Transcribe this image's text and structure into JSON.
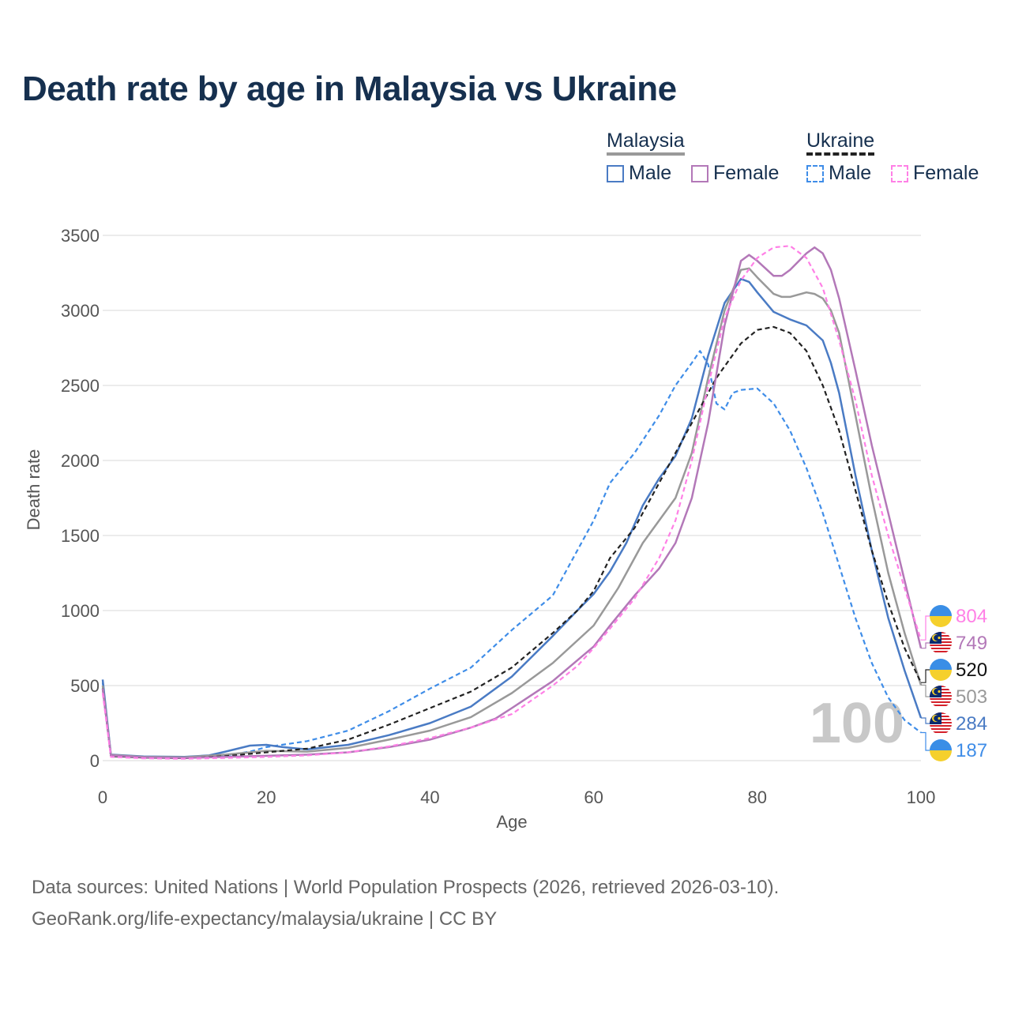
{
  "title": "Death rate by age in Malaysia vs Ukraine",
  "legend": {
    "malaysia_title": "Malaysia",
    "ukraine_title": "Ukraine",
    "male_label": "Male",
    "female_label": "Female"
  },
  "colors": {
    "malaysia_male": "#4a7bc4",
    "malaysia_female": "#b378b8",
    "malaysia_both": "#999999",
    "ukraine_male": "#3f8de8",
    "ukraine_female": "#ff80e6",
    "ukraine_both": "#222222"
  },
  "footer": {
    "line1": "Data sources: United Nations | World Population Prospects (2026, retrieved 2026-03-10).",
    "line2": "GeoRank.org/life-expectancy/malaysia/ukraine | CC BY"
  },
  "chart_data": {
    "type": "line",
    "title": "Death rate by age in Malaysia vs Ukraine",
    "xlabel": "Age",
    "ylabel": "Death rate",
    "xlim": [
      0,
      100
    ],
    "ylim": [
      0,
      3500
    ],
    "x_ticks": [
      0,
      20,
      40,
      60,
      80,
      100
    ],
    "y_ticks": [
      0,
      500,
      1000,
      1500,
      2000,
      2500,
      3000,
      3500
    ],
    "current_age": "100",
    "series": [
      {
        "key": "ukraine_male",
        "name": "Ukraine Male",
        "dashed": true,
        "end_label": "187",
        "points": [
          [
            0,
            520
          ],
          [
            1,
            35
          ],
          [
            5,
            22
          ],
          [
            10,
            18
          ],
          [
            15,
            35
          ],
          [
            18,
            60
          ],
          [
            20,
            90
          ],
          [
            25,
            130
          ],
          [
            30,
            200
          ],
          [
            35,
            330
          ],
          [
            40,
            480
          ],
          [
            45,
            620
          ],
          [
            50,
            870
          ],
          [
            55,
            1100
          ],
          [
            60,
            1600
          ],
          [
            62,
            1850
          ],
          [
            65,
            2050
          ],
          [
            68,
            2300
          ],
          [
            70,
            2500
          ],
          [
            72,
            2650
          ],
          [
            73,
            2730
          ],
          [
            74,
            2640
          ],
          [
            75,
            2380
          ],
          [
            76,
            2340
          ],
          [
            77,
            2450
          ],
          [
            78,
            2470
          ],
          [
            80,
            2480
          ],
          [
            82,
            2380
          ],
          [
            84,
            2200
          ],
          [
            86,
            1950
          ],
          [
            88,
            1650
          ],
          [
            90,
            1300
          ],
          [
            92,
            950
          ],
          [
            94,
            650
          ],
          [
            96,
            420
          ],
          [
            98,
            270
          ],
          [
            100,
            187
          ]
        ]
      },
      {
        "key": "malaysia_male",
        "name": "Malaysia Male",
        "dashed": false,
        "end_label": "284",
        "points": [
          [
            0,
            540
          ],
          [
            1,
            40
          ],
          [
            5,
            28
          ],
          [
            10,
            25
          ],
          [
            13,
            35
          ],
          [
            15,
            60
          ],
          [
            18,
            100
          ],
          [
            20,
            105
          ],
          [
            22,
            90
          ],
          [
            25,
            75
          ],
          [
            30,
            105
          ],
          [
            35,
            170
          ],
          [
            40,
            250
          ],
          [
            45,
            360
          ],
          [
            50,
            560
          ],
          [
            55,
            830
          ],
          [
            58,
            1000
          ],
          [
            60,
            1110
          ],
          [
            62,
            1260
          ],
          [
            64,
            1450
          ],
          [
            66,
            1700
          ],
          [
            68,
            1880
          ],
          [
            70,
            2030
          ],
          [
            72,
            2280
          ],
          [
            74,
            2700
          ],
          [
            76,
            3050
          ],
          [
            78,
            3210
          ],
          [
            79,
            3190
          ],
          [
            80,
            3120
          ],
          [
            82,
            2990
          ],
          [
            84,
            2940
          ],
          [
            86,
            2900
          ],
          [
            88,
            2800
          ],
          [
            89,
            2650
          ],
          [
            90,
            2450
          ],
          [
            92,
            1900
          ],
          [
            94,
            1400
          ],
          [
            96,
            950
          ],
          [
            98,
            600
          ],
          [
            100,
            284
          ]
        ]
      },
      {
        "key": "malaysia_both",
        "name": "Malaysia",
        "dashed": false,
        "end_label": "503",
        "points": [
          [
            0,
            500
          ],
          [
            1,
            38
          ],
          [
            5,
            25
          ],
          [
            10,
            22
          ],
          [
            15,
            40
          ],
          [
            20,
            65
          ],
          [
            25,
            60
          ],
          [
            30,
            85
          ],
          [
            35,
            140
          ],
          [
            40,
            200
          ],
          [
            45,
            290
          ],
          [
            50,
            450
          ],
          [
            55,
            650
          ],
          [
            60,
            900
          ],
          [
            63,
            1150
          ],
          [
            66,
            1450
          ],
          [
            68,
            1600
          ],
          [
            70,
            1750
          ],
          [
            72,
            2050
          ],
          [
            74,
            2550
          ],
          [
            76,
            3000
          ],
          [
            78,
            3270
          ],
          [
            79,
            3280
          ],
          [
            80,
            3220
          ],
          [
            82,
            3110
          ],
          [
            83,
            3090
          ],
          [
            84,
            3090
          ],
          [
            86,
            3120
          ],
          [
            87,
            3110
          ],
          [
            88,
            3080
          ],
          [
            89,
            3000
          ],
          [
            90,
            2850
          ],
          [
            92,
            2300
          ],
          [
            94,
            1750
          ],
          [
            96,
            1250
          ],
          [
            98,
            850
          ],
          [
            100,
            503
          ]
        ]
      },
      {
        "key": "ukraine_both",
        "name": "Ukraine",
        "dashed": true,
        "end_label": "520",
        "points": [
          [
            0,
            480
          ],
          [
            1,
            30
          ],
          [
            5,
            20
          ],
          [
            10,
            16
          ],
          [
            15,
            30
          ],
          [
            20,
            55
          ],
          [
            25,
            80
          ],
          [
            30,
            140
          ],
          [
            35,
            240
          ],
          [
            40,
            350
          ],
          [
            45,
            460
          ],
          [
            50,
            620
          ],
          [
            55,
            850
          ],
          [
            58,
            1000
          ],
          [
            60,
            1130
          ],
          [
            62,
            1350
          ],
          [
            65,
            1550
          ],
          [
            68,
            1850
          ],
          [
            70,
            2050
          ],
          [
            73,
            2350
          ],
          [
            75,
            2550
          ],
          [
            78,
            2780
          ],
          [
            80,
            2870
          ],
          [
            82,
            2890
          ],
          [
            84,
            2850
          ],
          [
            86,
            2730
          ],
          [
            88,
            2500
          ],
          [
            90,
            2200
          ],
          [
            92,
            1800
          ],
          [
            94,
            1400
          ],
          [
            96,
            1050
          ],
          [
            98,
            750
          ],
          [
            100,
            520
          ]
        ]
      },
      {
        "key": "malaysia_female",
        "name": "Malaysia Female",
        "dashed": false,
        "end_label": "749",
        "points": [
          [
            0,
            480
          ],
          [
            1,
            35
          ],
          [
            5,
            22
          ],
          [
            10,
            18
          ],
          [
            15,
            25
          ],
          [
            20,
            32
          ],
          [
            25,
            40
          ],
          [
            30,
            55
          ],
          [
            35,
            90
          ],
          [
            40,
            140
          ],
          [
            45,
            220
          ],
          [
            48,
            280
          ],
          [
            50,
            350
          ],
          [
            55,
            530
          ],
          [
            60,
            760
          ],
          [
            62,
            900
          ],
          [
            65,
            1100
          ],
          [
            68,
            1280
          ],
          [
            70,
            1450
          ],
          [
            72,
            1750
          ],
          [
            74,
            2250
          ],
          [
            76,
            2900
          ],
          [
            78,
            3330
          ],
          [
            79,
            3370
          ],
          [
            80,
            3330
          ],
          [
            82,
            3230
          ],
          [
            83,
            3230
          ],
          [
            84,
            3270
          ],
          [
            86,
            3380
          ],
          [
            87,
            3420
          ],
          [
            88,
            3380
          ],
          [
            89,
            3270
          ],
          [
            90,
            3080
          ],
          [
            92,
            2600
          ],
          [
            94,
            2100
          ],
          [
            96,
            1650
          ],
          [
            98,
            1200
          ],
          [
            100,
            749
          ]
        ]
      },
      {
        "key": "ukraine_female",
        "name": "Ukraine Female",
        "dashed": true,
        "end_label": "804",
        "points": [
          [
            0,
            450
          ],
          [
            1,
            25
          ],
          [
            5,
            15
          ],
          [
            10,
            12
          ],
          [
            15,
            18
          ],
          [
            20,
            25
          ],
          [
            25,
            35
          ],
          [
            30,
            55
          ],
          [
            35,
            95
          ],
          [
            40,
            150
          ],
          [
            45,
            220
          ],
          [
            50,
            310
          ],
          [
            55,
            500
          ],
          [
            58,
            630
          ],
          [
            60,
            750
          ],
          [
            62,
            880
          ],
          [
            65,
            1080
          ],
          [
            68,
            1350
          ],
          [
            70,
            1600
          ],
          [
            72,
            2000
          ],
          [
            74,
            2500
          ],
          [
            76,
            2950
          ],
          [
            78,
            3200
          ],
          [
            80,
            3350
          ],
          [
            82,
            3420
          ],
          [
            84,
            3430
          ],
          [
            86,
            3350
          ],
          [
            88,
            3150
          ],
          [
            90,
            2800
          ],
          [
            92,
            2400
          ],
          [
            94,
            1900
          ],
          [
            96,
            1500
          ],
          [
            98,
            1150
          ],
          [
            100,
            804
          ]
        ]
      }
    ],
    "end_labels_order": [
      {
        "key": "ukraine_female",
        "country": "ukraine",
        "value": "804"
      },
      {
        "key": "malaysia_female",
        "country": "malaysia",
        "value": "749"
      },
      {
        "key": "ukraine_both",
        "country": "ukraine",
        "value": "520"
      },
      {
        "key": "malaysia_both",
        "country": "malaysia",
        "value": "503"
      },
      {
        "key": "malaysia_male",
        "country": "malaysia",
        "value": "284"
      },
      {
        "key": "ukraine_male",
        "country": "ukraine",
        "value": "187"
      }
    ]
  }
}
